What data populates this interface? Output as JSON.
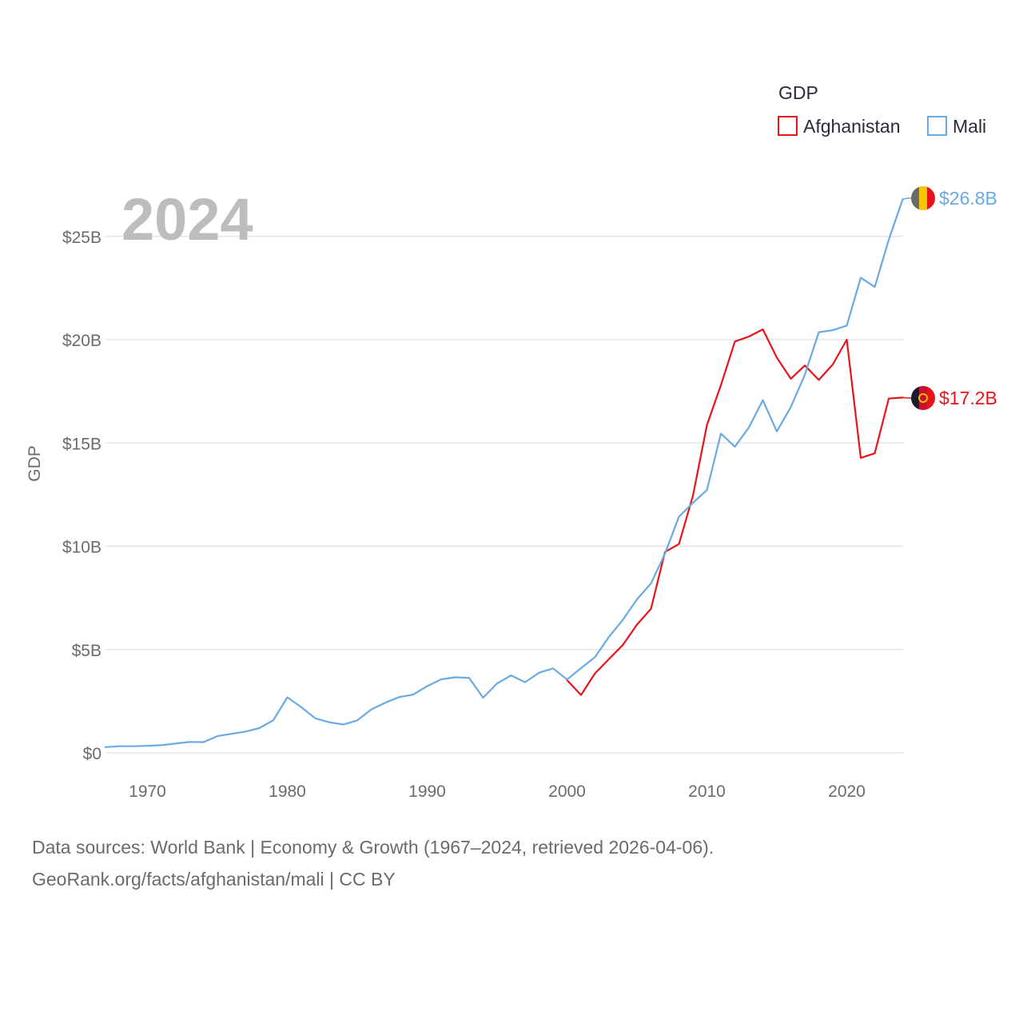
{
  "chart_data": {
    "type": "line",
    "title": "GDP",
    "year_label": "2024",
    "xlabel": "",
    "ylabel": "GDP",
    "xlim": [
      1967,
      2024
    ],
    "ylim": [
      0,
      27
    ],
    "x_ticks": [
      1970,
      1980,
      1990,
      2000,
      2010,
      2020
    ],
    "x_tick_labels": [
      "1970",
      "1980",
      "1990",
      "2000",
      "2010",
      "2020"
    ],
    "y_ticks": [
      0,
      5,
      10,
      15,
      20,
      25
    ],
    "y_tick_labels": [
      "$0",
      "$5B",
      "$10B",
      "$15B",
      "$20B",
      "$25B"
    ],
    "legend_title": "GDP",
    "legend_position": "top-right",
    "grid": true,
    "series": [
      {
        "name": "Afghanistan",
        "color": "#e8141c",
        "end_label": "$17.2B",
        "x": [
          2000,
          2001,
          2002,
          2003,
          2004,
          2005,
          2006,
          2007,
          2008,
          2009,
          2010,
          2011,
          2012,
          2013,
          2014,
          2015,
          2016,
          2017,
          2018,
          2019,
          2020,
          2021,
          2022,
          2023,
          2024
        ],
        "values": [
          3.52,
          2.8,
          3.85,
          4.54,
          5.23,
          6.21,
          6.97,
          9.72,
          10.11,
          12.44,
          15.86,
          17.8,
          19.91,
          20.15,
          20.5,
          19.13,
          18.11,
          18.75,
          18.05,
          18.8,
          20.0,
          14.28,
          14.5,
          17.15,
          17.2
        ]
      },
      {
        "name": "Mali",
        "color": "#6aaae4",
        "end_label": "$26.8B",
        "x": [
          1967,
          1968,
          1969,
          1970,
          1971,
          1972,
          1973,
          1974,
          1975,
          1976,
          1977,
          1978,
          1979,
          1980,
          1981,
          1982,
          1983,
          1984,
          1985,
          1986,
          1987,
          1988,
          1989,
          1990,
          1991,
          1992,
          1993,
          1994,
          1995,
          1996,
          1997,
          1998,
          1999,
          2000,
          2001,
          2002,
          2003,
          2004,
          2005,
          2006,
          2007,
          2008,
          2009,
          2010,
          2011,
          2012,
          2013,
          2014,
          2015,
          2016,
          2017,
          2018,
          2019,
          2020,
          2021,
          2022,
          2023,
          2024
        ],
        "values": [
          0.28,
          0.32,
          0.32,
          0.34,
          0.37,
          0.45,
          0.53,
          0.52,
          0.81,
          0.92,
          1.03,
          1.2,
          1.58,
          2.69,
          2.21,
          1.67,
          1.48,
          1.37,
          1.57,
          2.1,
          2.43,
          2.7,
          2.82,
          3.23,
          3.56,
          3.66,
          3.63,
          2.67,
          3.36,
          3.75,
          3.42,
          3.88,
          4.09,
          3.55,
          4.1,
          4.64,
          5.62,
          6.45,
          7.43,
          8.2,
          9.64,
          11.43,
          12.1,
          12.72,
          15.45,
          14.82,
          15.75,
          17.07,
          15.56,
          16.74,
          18.3,
          20.36,
          20.46,
          20.68,
          23.0,
          22.55,
          24.83,
          26.8
        ]
      }
    ]
  },
  "footer": {
    "line1": "Data sources: World Bank | Economy & Growth (1967–2024, retrieved 2026-04-06).",
    "line2": "GeoRank.org/facts/afghanistan/mali | CC BY"
  }
}
